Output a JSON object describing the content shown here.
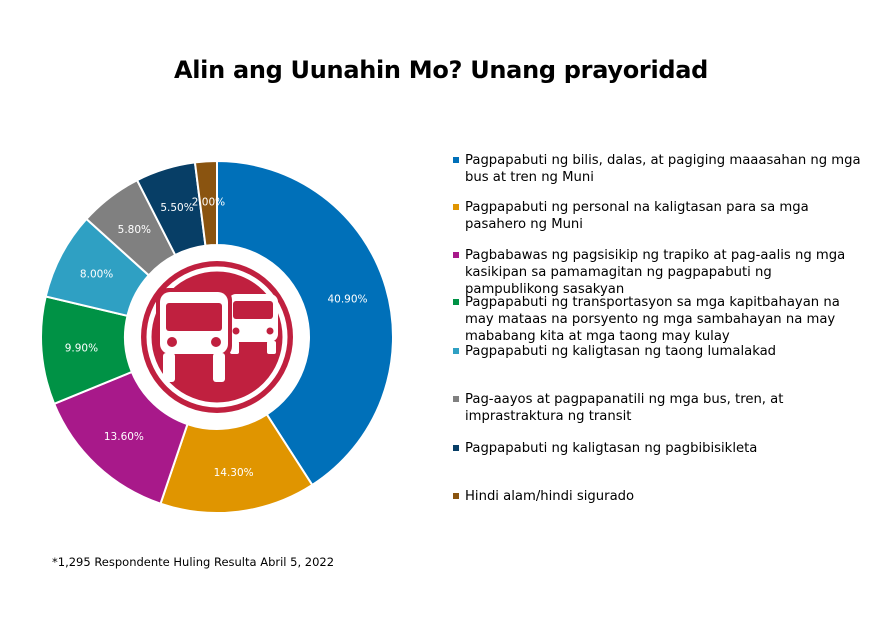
{
  "chart_data": {
    "type": "pie",
    "title": "Alin ang Uunahin Mo? Unang prayoridad",
    "categories": [
      "Pagpapabuti ng bilis, dalas, at pagiging maaasahan ng mga bus at tren ng Muni",
      "Pagpapabuti ng personal na kaligtasan para sa mga pasahero ng Muni",
      "Pagbabawas ng pagsisikip ng trapiko at pag-aalis ng mga kasikipan sa pamamagitan ng pagpapabuti ng pampublikong sasakyan",
      "Pagpapabuti ng transportasyon sa mga kapitbahayan na may mataas na porsyento ng mga sambahayan na may mababang kita at mga taong may kulay",
      "Pagpapabuti ng kaligtasan ng taong lumalakad",
      "Pag-aayos at pagpapanatili ng mga bus, tren, at imprastraktura ng transit",
      "Pagpapabuti ng kaligtasan ng pagbibisikleta",
      "Hindi alam/hindi sigurado"
    ],
    "values": [
      40.9,
      14.3,
      13.6,
      9.9,
      8.0,
      5.8,
      5.5,
      2.0
    ],
    "value_labels": [
      "40.90%",
      "14.30%",
      "13.60%",
      "9.90%",
      "8.00%",
      "5.80%",
      "5.50%",
      "2.00%"
    ],
    "colors": [
      "#0070b9",
      "#e09500",
      "#a8198a",
      "#009245",
      "#2fa0c3",
      "#808080",
      "#073e66",
      "#8a5410"
    ],
    "center_color": "#c0203f",
    "center_icon": "bus-icon",
    "legend_position": "right",
    "footnote": "*1,295 Respondente Huling Resulta Abril 5, 2022"
  }
}
